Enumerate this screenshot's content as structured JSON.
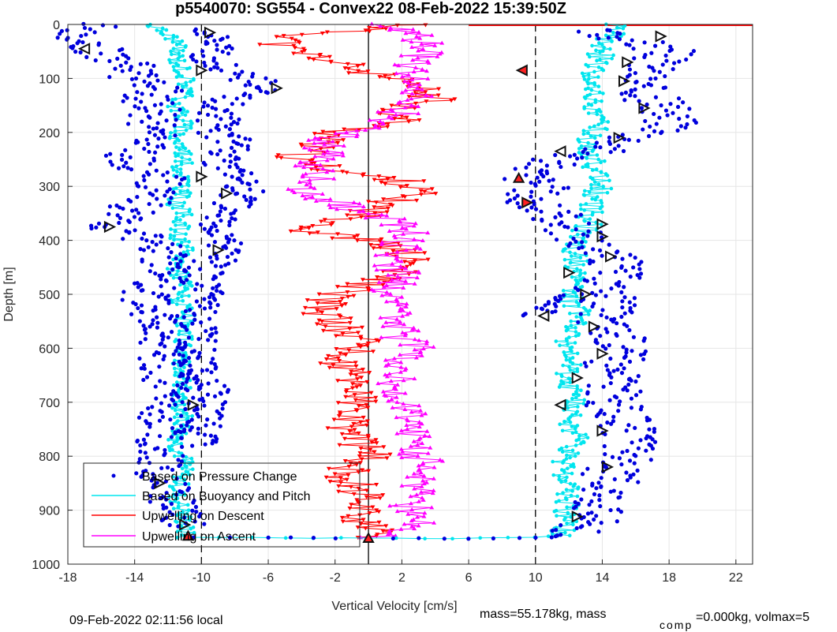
{
  "figure": {
    "title": "p5540070: SG554 - Convex22 08-Feb-2022 15:39:50Z",
    "footer_left": "09-Feb-2022 02:11:56 local",
    "footer_mass": "mass=55.178kg, mass",
    "footer_comp_sub": "comp",
    "footer_comp_rest": "=0.000kg, volmax=5"
  },
  "colors": {
    "pressure": "#0000dd",
    "buoyancy": "#00e5ee",
    "descent": "#ff0000",
    "ascent": "#ff00ff",
    "grid": "#e6e6e6"
  },
  "chart_data": {
    "type": "scatter",
    "xlabel": "Vertical Velocity [cm/s]",
    "ylabel": "Depth [m]",
    "xlim": [
      -18,
      23
    ],
    "ylim": [
      0,
      1000
    ],
    "y_reversed": true,
    "x_ticks": [
      -18,
      -14,
      -10,
      -6,
      -2,
      2,
      6,
      10,
      14,
      18,
      22
    ],
    "y_ticks": [
      0,
      100,
      200,
      300,
      400,
      500,
      600,
      700,
      800,
      900,
      1000
    ],
    "grid": true,
    "legend_position": "bottom-left",
    "reference_lines": [
      {
        "x": 0,
        "style": "solid"
      },
      {
        "x": -10,
        "style": "dashed"
      },
      {
        "x": 10,
        "style": "dashed"
      }
    ],
    "series": [
      {
        "name": "Based on Pressure Change",
        "marker": "dot",
        "descent": [
          [
            -16.5,
            0
          ],
          [
            -17.5,
            30
          ],
          [
            -16,
            50
          ],
          [
            -15,
            70
          ],
          [
            -13.5,
            85
          ],
          [
            -14,
            100
          ],
          [
            -12.5,
            120
          ],
          [
            -13.5,
            140
          ],
          [
            -12.5,
            160
          ],
          [
            -13,
            180
          ],
          [
            -12.5,
            200
          ],
          [
            -13,
            220
          ],
          [
            -14.5,
            250
          ],
          [
            -13.5,
            265
          ],
          [
            -12.5,
            285
          ],
          [
            -13,
            300
          ],
          [
            -12.8,
            320
          ],
          [
            -14,
            340
          ],
          [
            -15,
            360
          ],
          [
            -16.5,
            375
          ],
          [
            -14,
            390
          ],
          [
            -12.5,
            410
          ],
          [
            -12,
            440
          ],
          [
            -12.5,
            470
          ],
          [
            -13.2,
            500
          ],
          [
            -13.5,
            530
          ],
          [
            -12.5,
            560
          ],
          [
            -12.3,
            600
          ],
          [
            -12,
            630
          ],
          [
            -12,
            660
          ],
          [
            -12.5,
            700
          ],
          [
            -12,
            740
          ],
          [
            -12.3,
            780
          ],
          [
            -12.5,
            820
          ],
          [
            -12,
            860
          ],
          [
            -11.5,
            900
          ],
          [
            -11,
            930
          ]
        ],
        "ascent": [
          [
            -10.5,
            10
          ],
          [
            -9,
            30
          ],
          [
            -9.5,
            60
          ],
          [
            -8,
            90
          ],
          [
            -6,
            115
          ],
          [
            -8.5,
            140
          ],
          [
            -9,
            170
          ],
          [
            -9,
            200
          ],
          [
            -8,
            220
          ],
          [
            -9,
            250
          ],
          [
            -8,
            280
          ],
          [
            -7.5,
            310
          ],
          [
            -8.5,
            340
          ],
          [
            -9.5,
            370
          ],
          [
            -8.5,
            400
          ],
          [
            -9,
            430
          ],
          [
            -10,
            460
          ],
          [
            -10,
            500
          ],
          [
            -10.5,
            540
          ],
          [
            -10,
            580
          ],
          [
            -10.5,
            620
          ],
          [
            -9.5,
            680
          ],
          [
            -10,
            720
          ],
          [
            -10,
            780
          ]
        ],
        "return": [
          [
            -10.5,
            950
          ],
          [
            -6,
            950
          ],
          [
            -2,
            952
          ],
          [
            0,
            952
          ],
          [
            3,
            952
          ],
          [
            6,
            952
          ],
          [
            9,
            952
          ],
          [
            11,
            950
          ],
          [
            11.5,
            945
          ]
        ],
        "descent_right": [
          [
            13,
            10
          ],
          [
            16,
            30
          ],
          [
            18,
            50
          ],
          [
            17,
            80
          ],
          [
            16,
            110
          ],
          [
            17,
            140
          ],
          [
            18,
            170
          ],
          [
            18.5,
            190
          ],
          [
            16,
            210
          ],
          [
            14.5,
            230
          ],
          [
            11.5,
            250
          ],
          [
            9.5,
            280
          ],
          [
            10.5,
            300
          ],
          [
            9.5,
            330
          ],
          [
            11,
            350
          ],
          [
            12,
            370
          ],
          [
            12.5,
            390
          ],
          [
            13.5,
            410
          ],
          [
            14.5,
            430
          ],
          [
            15,
            460
          ],
          [
            14,
            490
          ],
          [
            14.5,
            520
          ],
          [
            14,
            550
          ],
          [
            15,
            580
          ],
          [
            15.5,
            600
          ],
          [
            14.5,
            630
          ],
          [
            15,
            660
          ],
          [
            14.5,
            700
          ],
          [
            15.5,
            740
          ],
          [
            15.5,
            780
          ],
          [
            15.5,
            800
          ],
          [
            14.5,
            830
          ],
          [
            14.5,
            860
          ],
          [
            14,
            890
          ],
          [
            13.5,
            920
          ],
          [
            12.5,
            940
          ]
        ],
        "ascent_right": [
          [
            10,
            540
          ],
          [
            11,
            520
          ],
          [
            12,
            500
          ]
        ]
      },
      {
        "name": "Based on Buoyancy and Pitch",
        "marker": "line-dot",
        "descent": [
          [
            -13,
            0
          ],
          [
            -11.5,
            30
          ],
          [
            -11.5,
            60
          ],
          [
            -11,
            90
          ],
          [
            -10.8,
            120
          ],
          [
            -11.5,
            150
          ],
          [
            -11,
            180
          ],
          [
            -11.5,
            210
          ],
          [
            -11,
            240
          ],
          [
            -11.2,
            270
          ],
          [
            -11,
            300
          ],
          [
            -11.5,
            330
          ],
          [
            -11,
            360
          ],
          [
            -11.5,
            390
          ],
          [
            -11,
            420
          ],
          [
            -11.5,
            450
          ],
          [
            -11,
            480
          ],
          [
            -11.3,
            510
          ],
          [
            -11,
            540
          ],
          [
            -11.2,
            570
          ],
          [
            -11,
            600
          ],
          [
            -11.3,
            630
          ],
          [
            -11,
            660
          ],
          [
            -11.5,
            690
          ],
          [
            -11,
            720
          ],
          [
            -11.2,
            750
          ],
          [
            -11.5,
            780
          ],
          [
            -11,
            810
          ],
          [
            -11.2,
            840
          ],
          [
            -11.5,
            870
          ],
          [
            -11.2,
            900
          ],
          [
            -11,
            930
          ],
          [
            -11,
            950
          ]
        ],
        "return": [
          [
            -11,
            950
          ],
          [
            -5,
            951
          ],
          [
            0,
            952
          ],
          [
            5,
            952
          ],
          [
            10,
            950
          ],
          [
            11.5,
            946
          ]
        ],
        "ascent": [
          [
            11.5,
            946
          ],
          [
            12,
            920
          ],
          [
            11.8,
            890
          ],
          [
            12,
            860
          ],
          [
            11.5,
            830
          ],
          [
            12,
            800
          ],
          [
            12.5,
            770
          ],
          [
            12,
            740
          ],
          [
            12.5,
            710
          ],
          [
            12,
            680
          ],
          [
            11.8,
            650
          ],
          [
            12.5,
            620
          ],
          [
            12,
            590
          ],
          [
            12.3,
            560
          ],
          [
            12.5,
            530
          ],
          [
            12,
            500
          ],
          [
            12.5,
            470
          ],
          [
            12.3,
            440
          ],
          [
            12.5,
            410
          ],
          [
            13,
            380
          ],
          [
            13.5,
            350
          ],
          [
            13.5,
            320
          ],
          [
            14,
            290
          ],
          [
            13.5,
            260
          ],
          [
            13,
            230
          ],
          [
            13.5,
            200
          ],
          [
            13.8,
            170
          ],
          [
            13.5,
            140
          ],
          [
            13.2,
            110
          ],
          [
            13.5,
            80
          ],
          [
            14,
            50
          ],
          [
            14.5,
            20
          ],
          [
            15,
            0
          ]
        ]
      },
      {
        "name": "Upwelling on Descent",
        "marker": "triangle-down",
        "values": [
          [
            3,
            0
          ],
          [
            -4,
            20
          ],
          [
            -5.5,
            40
          ],
          [
            -3,
            60
          ],
          [
            -1,
            80
          ],
          [
            1,
            100
          ],
          [
            3,
            120
          ],
          [
            4,
            140
          ],
          [
            1.5,
            160
          ],
          [
            2,
            180
          ],
          [
            -2,
            200
          ],
          [
            -3,
            220
          ],
          [
            -4.5,
            250
          ],
          [
            -2,
            270
          ],
          [
            2,
            290
          ],
          [
            3,
            310
          ],
          [
            1,
            330
          ],
          [
            0,
            350
          ],
          [
            -2,
            370
          ],
          [
            -4,
            380
          ],
          [
            0,
            400
          ],
          [
            2,
            420
          ],
          [
            2.5,
            440
          ],
          [
            1,
            470
          ],
          [
            -1,
            490
          ],
          [
            -2.5,
            510
          ],
          [
            -3,
            530
          ],
          [
            -2,
            550
          ],
          [
            -1.5,
            570
          ],
          [
            0,
            590
          ],
          [
            -2,
            620
          ],
          [
            -1,
            650
          ],
          [
            -0.5,
            680
          ],
          [
            -1,
            710
          ],
          [
            -1.5,
            740
          ],
          [
            -0.5,
            770
          ],
          [
            0,
            800
          ],
          [
            -1.5,
            830
          ],
          [
            -0.5,
            860
          ],
          [
            0,
            890
          ],
          [
            -0.5,
            920
          ],
          [
            0.5,
            950
          ]
        ]
      },
      {
        "name": "Upwelling on Ascent",
        "marker": "triangle-up",
        "values": [
          [
            0.5,
            950
          ],
          [
            3,
            920
          ],
          [
            2.5,
            890
          ],
          [
            3,
            860
          ],
          [
            3.5,
            830
          ],
          [
            3,
            800
          ],
          [
            2.5,
            770
          ],
          [
            3,
            740
          ],
          [
            2.5,
            710
          ],
          [
            2,
            680
          ],
          [
            1.5,
            650
          ],
          [
            2,
            620
          ],
          [
            3,
            600
          ],
          [
            2,
            580
          ],
          [
            1.5,
            550
          ],
          [
            2,
            520
          ],
          [
            1,
            500
          ],
          [
            2,
            470
          ],
          [
            1.5,
            440
          ],
          [
            2,
            410
          ],
          [
            2.5,
            380
          ],
          [
            1,
            360
          ],
          [
            -1,
            340
          ],
          [
            -3,
            320
          ],
          [
            -4,
            300
          ],
          [
            -3,
            280
          ],
          [
            -3.5,
            260
          ],
          [
            -2,
            240
          ],
          [
            -3,
            220
          ],
          [
            -1,
            200
          ],
          [
            1,
            180
          ],
          [
            2,
            160
          ],
          [
            3,
            140
          ],
          [
            2.5,
            120
          ],
          [
            3,
            100
          ],
          [
            2.5,
            80
          ],
          [
            3,
            60
          ],
          [
            3.5,
            40
          ],
          [
            2.5,
            20
          ],
          [
            1,
            0
          ]
        ]
      }
    ],
    "markers": [
      {
        "type": "right",
        "x": -9.5,
        "y": 15
      },
      {
        "type": "left",
        "x": -17,
        "y": 45
      },
      {
        "type": "right",
        "x": -10,
        "y": 85
      },
      {
        "type": "right",
        "x": -5.5,
        "y": 118
      },
      {
        "type": "right",
        "x": -10,
        "y": 282
      },
      {
        "type": "right",
        "x": -8.5,
        "y": 313
      },
      {
        "type": "right",
        "x": -15.5,
        "y": 375
      },
      {
        "type": "right",
        "x": -9,
        "y": 418
      },
      {
        "type": "right",
        "x": -10.5,
        "y": 705
      },
      {
        "type": "right",
        "x": -12.5,
        "y": 850
      },
      {
        "type": "right",
        "x": -11,
        "y": 927
      },
      {
        "type": "up-red",
        "x": -10.8,
        "y": 948
      },
      {
        "type": "up-red",
        "x": 0,
        "y": 952
      },
      {
        "type": "left-red",
        "x": 9.2,
        "y": 85
      },
      {
        "type": "up-red",
        "x": 9,
        "y": 285
      },
      {
        "type": "right-red",
        "x": 9.5,
        "y": 330
      },
      {
        "type": "right",
        "x": 17.5,
        "y": 22
      },
      {
        "type": "right",
        "x": 15.5,
        "y": 70
      },
      {
        "type": "right",
        "x": 15.3,
        "y": 105
      },
      {
        "type": "right",
        "x": 16.5,
        "y": 155
      },
      {
        "type": "right",
        "x": 15,
        "y": 210
      },
      {
        "type": "left",
        "x": 11.5,
        "y": 235
      },
      {
        "type": "right",
        "x": 14,
        "y": 370
      },
      {
        "type": "right",
        "x": 14,
        "y": 393
      },
      {
        "type": "right",
        "x": 14.5,
        "y": 430
      },
      {
        "type": "right",
        "x": 12,
        "y": 460
      },
      {
        "type": "right",
        "x": 13,
        "y": 500
      },
      {
        "type": "left",
        "x": 10.5,
        "y": 540
      },
      {
        "type": "right",
        "x": 13.5,
        "y": 560
      },
      {
        "type": "right",
        "x": 14,
        "y": 610
      },
      {
        "type": "right",
        "x": 12.5,
        "y": 655
      },
      {
        "type": "left",
        "x": 11.5,
        "y": 705
      },
      {
        "type": "right",
        "x": 14,
        "y": 753
      },
      {
        "type": "right",
        "x": 14.3,
        "y": 820
      },
      {
        "type": "right",
        "x": 12.5,
        "y": 912
      }
    ],
    "surface_line": {
      "color": "#ff0000",
      "from_x": 6,
      "to_x": 23,
      "y": 0
    }
  }
}
